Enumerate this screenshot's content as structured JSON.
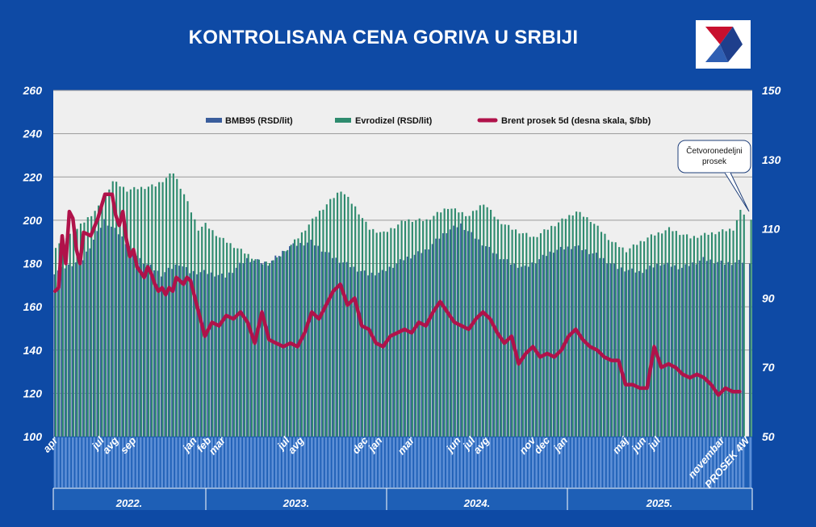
{
  "title": "KONTROLISANA CENA GORIVA U SRBIJI",
  "logo_icon": "nis-logo-icon",
  "colors": {
    "background": "#0e4aa5",
    "plot": "#efefef",
    "bmb95": "#3a5d9c",
    "evrodizel": "#2e8b6e",
    "brent": "#b0124a"
  },
  "chart_data": {
    "type": "bar",
    "title": "KONTROLISANA CENA GORIVA U SRBIJI",
    "ylim": [
      100,
      260
    ],
    "y2lim": [
      50,
      150
    ],
    "yticks": [
      "100",
      "120",
      "140",
      "160",
      "180",
      "200",
      "220",
      "240",
      "260"
    ],
    "y2ticks": [
      "50",
      "70",
      "90",
      "110",
      "130",
      "150"
    ],
    "grid": true,
    "legend_position": "top",
    "legend": [
      {
        "name": "BMB95 (RSD/lit)",
        "mark": "bar"
      },
      {
        "name": "Evrodizel (RSD/lit)",
        "mark": "bar"
      },
      {
        "name": "Brent prosek  5d (desna skala, $/bb)",
        "mark": "line"
      }
    ],
    "annotation": "Četvoronedeljni prosek",
    "month_labels": [
      {
        "label": "apr",
        "week": 0
      },
      {
        "label": "jul",
        "week": 13
      },
      {
        "label": "avg",
        "week": 17
      },
      {
        "label": "sep",
        "week": 22
      },
      {
        "label": "jan",
        "week": 39
      },
      {
        "label": "feb",
        "week": 43
      },
      {
        "label": "mar",
        "week": 47
      },
      {
        "label": "jul",
        "week": 65
      },
      {
        "label": "avg",
        "week": 69
      },
      {
        "label": "dec",
        "week": 87
      },
      {
        "label": "jan",
        "week": 91
      },
      {
        "label": "mar",
        "week": 100
      },
      {
        "label": "jun",
        "week": 113
      },
      {
        "label": "jul",
        "week": 117
      },
      {
        "label": "avg",
        "week": 121
      },
      {
        "label": "nov",
        "week": 134
      },
      {
        "label": "dec",
        "week": 138
      },
      {
        "label": "jan",
        "week": 143
      },
      {
        "label": "maj",
        "week": 160
      },
      {
        "label": "jun",
        "week": 165
      },
      {
        "label": "jul",
        "week": 169
      },
      {
        "label": "novembar",
        "week": 187
      },
      {
        "label": "PROSEK 4W",
        "week": 194
      }
    ],
    "years": [
      "2022.",
      "2023.",
      "2024.",
      "2025."
    ],
    "bmb95_keys": [
      [
        0,
        176
      ],
      [
        8,
        182
      ],
      [
        14,
        200
      ],
      [
        18,
        194
      ],
      [
        24,
        182
      ],
      [
        30,
        175
      ],
      [
        35,
        180
      ],
      [
        38,
        176
      ],
      [
        42,
        176
      ],
      [
        48,
        174
      ],
      [
        54,
        182
      ],
      [
        60,
        180
      ],
      [
        66,
        188
      ],
      [
        72,
        190
      ],
      [
        78,
        183
      ],
      [
        84,
        178
      ],
      [
        88,
        175
      ],
      [
        92,
        176
      ],
      [
        98,
        182
      ],
      [
        104,
        186
      ],
      [
        110,
        195
      ],
      [
        114,
        198
      ],
      [
        118,
        192
      ],
      [
        124,
        184
      ],
      [
        128,
        180
      ],
      [
        132,
        178
      ],
      [
        140,
        186
      ],
      [
        146,
        188
      ],
      [
        152,
        184
      ],
      [
        158,
        178
      ],
      [
        164,
        176
      ],
      [
        170,
        180
      ],
      [
        176,
        178
      ],
      [
        182,
        182
      ],
      [
        188,
        180
      ],
      [
        194,
        181
      ]
    ],
    "evrodizel_keys": [
      [
        0,
        188
      ],
      [
        6,
        196
      ],
      [
        12,
        206
      ],
      [
        16,
        218
      ],
      [
        20,
        214
      ],
      [
        28,
        216
      ],
      [
        33,
        222
      ],
      [
        36,
        212
      ],
      [
        40,
        196
      ],
      [
        42,
        198
      ],
      [
        46,
        192
      ],
      [
        52,
        186
      ],
      [
        58,
        180
      ],
      [
        62,
        182
      ],
      [
        68,
        192
      ],
      [
        74,
        204
      ],
      [
        80,
        214
      ],
      [
        84,
        206
      ],
      [
        88,
        196
      ],
      [
        92,
        194
      ],
      [
        98,
        200
      ],
      [
        104,
        200
      ],
      [
        110,
        206
      ],
      [
        116,
        202
      ],
      [
        120,
        208
      ],
      [
        124,
        200
      ],
      [
        128,
        196
      ],
      [
        134,
        192
      ],
      [
        140,
        198
      ],
      [
        146,
        204
      ],
      [
        150,
        200
      ],
      [
        156,
        190
      ],
      [
        160,
        186
      ],
      [
        166,
        192
      ],
      [
        172,
        196
      ],
      [
        178,
        192
      ],
      [
        184,
        194
      ],
      [
        190,
        196
      ],
      [
        192,
        204
      ],
      [
        195,
        201
      ]
    ],
    "brent_keys": [
      [
        0,
        92
      ],
      [
        1,
        93
      ],
      [
        2,
        108
      ],
      [
        3,
        100
      ],
      [
        4,
        115
      ],
      [
        5,
        113
      ],
      [
        6,
        104
      ],
      [
        7,
        100
      ],
      [
        8,
        109
      ],
      [
        10,
        108
      ],
      [
        12,
        113
      ],
      [
        14,
        120
      ],
      [
        16,
        120
      ],
      [
        17,
        114
      ],
      [
        18,
        111
      ],
      [
        19,
        115
      ],
      [
        20,
        107
      ],
      [
        21,
        102
      ],
      [
        22,
        104
      ],
      [
        23,
        99
      ],
      [
        25,
        96
      ],
      [
        26,
        99
      ],
      [
        27,
        97
      ],
      [
        28,
        94
      ],
      [
        29,
        92
      ],
      [
        30,
        93
      ],
      [
        31,
        91
      ],
      [
        32,
        93
      ],
      [
        33,
        92
      ],
      [
        34,
        96
      ],
      [
        35,
        95
      ],
      [
        36,
        94
      ],
      [
        37,
        96
      ],
      [
        38,
        95
      ],
      [
        40,
        87
      ],
      [
        42,
        79
      ],
      [
        44,
        83
      ],
      [
        46,
        82
      ],
      [
        48,
        85
      ],
      [
        50,
        84
      ],
      [
        52,
        86
      ],
      [
        54,
        83
      ],
      [
        56,
        77
      ],
      [
        58,
        86
      ],
      [
        60,
        78
      ],
      [
        62,
        77
      ],
      [
        64,
        76
      ],
      [
        66,
        77
      ],
      [
        68,
        76
      ],
      [
        70,
        80
      ],
      [
        72,
        86
      ],
      [
        74,
        84
      ],
      [
        76,
        88
      ],
      [
        78,
        92
      ],
      [
        80,
        94
      ],
      [
        82,
        88
      ],
      [
        84,
        90
      ],
      [
        86,
        82
      ],
      [
        88,
        81
      ],
      [
        90,
        77
      ],
      [
        92,
        76
      ],
      [
        94,
        79
      ],
      [
        96,
        80
      ],
      [
        98,
        81
      ],
      [
        100,
        80
      ],
      [
        102,
        83
      ],
      [
        104,
        82
      ],
      [
        106,
        86
      ],
      [
        108,
        89
      ],
      [
        110,
        86
      ],
      [
        112,
        83
      ],
      [
        114,
        82
      ],
      [
        116,
        81
      ],
      [
        118,
        84
      ],
      [
        120,
        86
      ],
      [
        122,
        84
      ],
      [
        124,
        80
      ],
      [
        126,
        77
      ],
      [
        128,
        79
      ],
      [
        130,
        71
      ],
      [
        132,
        74
      ],
      [
        134,
        76
      ],
      [
        136,
        73
      ],
      [
        138,
        74
      ],
      [
        140,
        73
      ],
      [
        142,
        75
      ],
      [
        144,
        79
      ],
      [
        146,
        81
      ],
      [
        148,
        78
      ],
      [
        150,
        76
      ],
      [
        152,
        75
      ],
      [
        154,
        73
      ],
      [
        156,
        72
      ],
      [
        158,
        72
      ],
      [
        160,
        65
      ],
      [
        162,
        65
      ],
      [
        164,
        64
      ],
      [
        166,
        64
      ],
      [
        168,
        76
      ],
      [
        170,
        70
      ],
      [
        172,
        71
      ],
      [
        174,
        70
      ],
      [
        176,
        68
      ],
      [
        178,
        67
      ],
      [
        180,
        68
      ],
      [
        182,
        67
      ],
      [
        184,
        65
      ],
      [
        186,
        62
      ],
      [
        188,
        64
      ],
      [
        190,
        63
      ],
      [
        192,
        63
      ]
    ]
  },
  "year_labels": {
    "y2022": "2022.",
    "y2023": "2023.",
    "y2024": "2024.",
    "y2025": "2025."
  },
  "legend": {
    "bmb95": "BMB95 (RSD/lit)",
    "evrodizel": "Evrodizel (RSD/lit)",
    "brent": "Brent prosek  5d (desna skala, $/bb)"
  },
  "callout": {
    "line1": "Četvoronedeljni",
    "line2": "prosek"
  }
}
